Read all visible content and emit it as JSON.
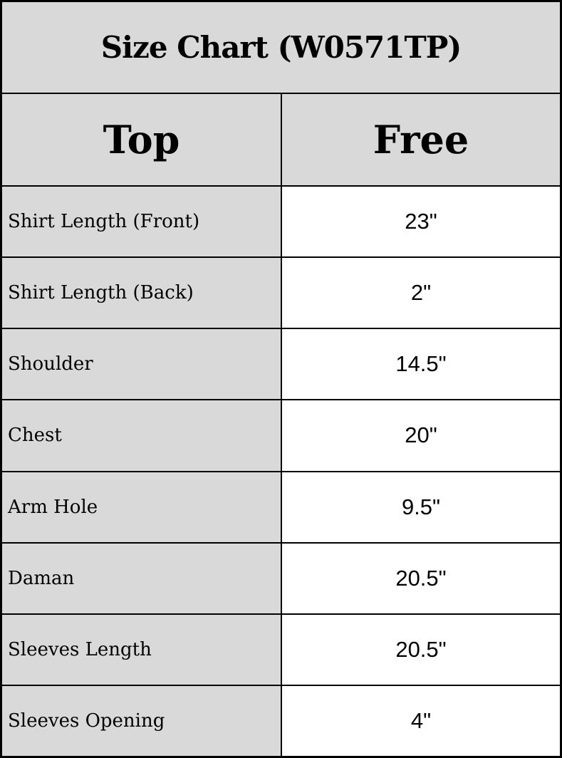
{
  "chart_data": {
    "type": "table",
    "title": "Size Chart (W0571TP)",
    "columns": [
      "Top",
      "Free"
    ],
    "rows": [
      [
        "Shirt Length (Front)",
        "23\""
      ],
      [
        "Shirt Length (Back)",
        "2\""
      ],
      [
        "Shoulder",
        "14.5\""
      ],
      [
        "Chest",
        "20\""
      ],
      [
        "Arm Hole",
        "9.5\""
      ],
      [
        "Daman",
        "20.5\""
      ],
      [
        "Sleeves Length",
        "20.5\""
      ],
      [
        "Sleeves Opening",
        "4\""
      ]
    ]
  },
  "table": {
    "title": "Size Chart (W0571TP)",
    "col_headers": [
      "Top",
      "Free"
    ],
    "rows": [
      {
        "label": "Shirt Length (Front)",
        "value": "23\""
      },
      {
        "label": "Shirt Length (Back)",
        "value": "2\""
      },
      {
        "label": "Shoulder",
        "value": "14.5\""
      },
      {
        "label": "Chest",
        "value": "20\""
      },
      {
        "label": "Arm Hole",
        "value": "9.5\""
      },
      {
        "label": "Daman",
        "value": "20.5\""
      },
      {
        "label": "Sleeves Length",
        "value": "20.5\""
      },
      {
        "label": "Sleeves Opening",
        "value": "4\""
      }
    ]
  },
  "colors": {
    "header_bg": "#d9d9d9",
    "label_bg": "#d9d9d9",
    "value_bg": "#ffffff",
    "border": "#000000",
    "text": "#000000"
  }
}
